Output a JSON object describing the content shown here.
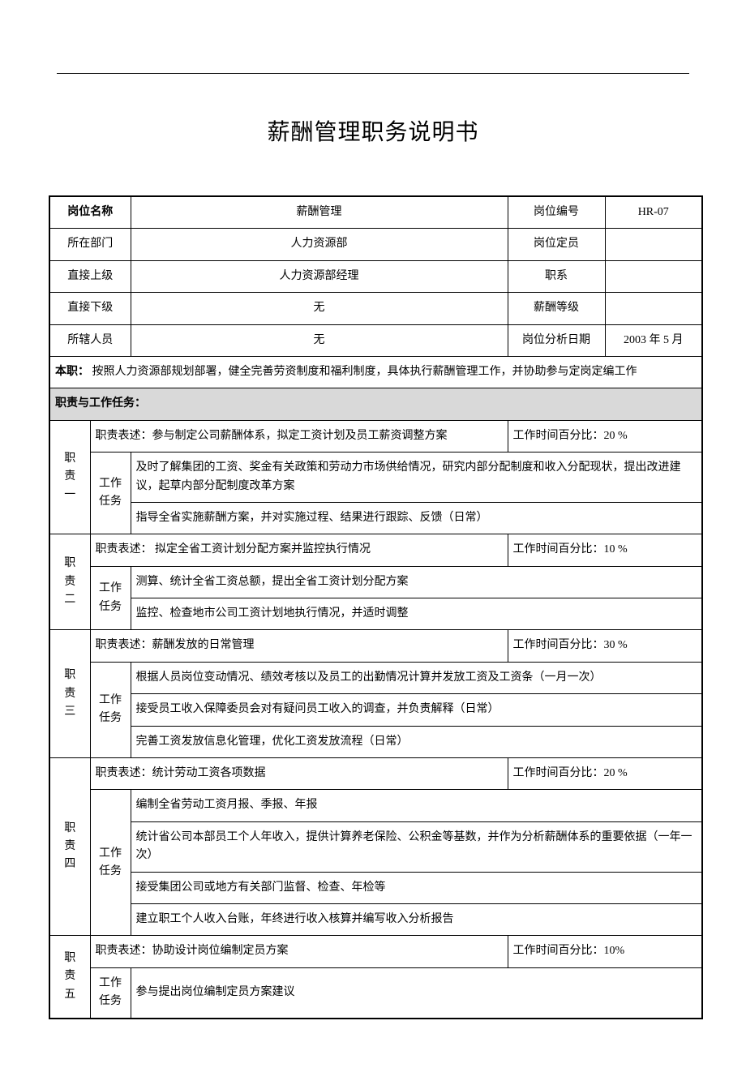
{
  "doc_title": "薪酬管理职务说明书",
  "info_rows": [
    {
      "l1": "岗位名称",
      "l2": "薪酬管理",
      "l3": "岗位编号",
      "l4": "HR-07",
      "bold1": true
    },
    {
      "l1": "所在部门",
      "l2": "人力资源部",
      "l3": "岗位定员",
      "l4": ""
    },
    {
      "l1": "直接上级",
      "l2": "人力资源部经理",
      "l3": "职系",
      "l4": ""
    },
    {
      "l1": "直接下级",
      "l2": "无",
      "l3": "薪酬等级",
      "l4": ""
    },
    {
      "l1": "所辖人员",
      "l2": "无",
      "l3": "岗位分析日期",
      "l4": "2003 年 5 月"
    }
  ],
  "main_duty_label": "本职：",
  "main_duty_text": " 按照人力资源部规划部署，健全完善劳资制度和福利制度，具体执行薪酬管理工作，并协助参与定岗定编工作",
  "section_header": "职责与工作任务：",
  "task_label": "工作任务",
  "desc_prefix": "职责表述：",
  "time_prefix": "工作时间百分比：",
  "duties": [
    {
      "id": "职责一",
      "desc": "参与制定公司薪酬体系，拟定工资计划及员工薪资调整方案",
      "time": "20 %",
      "tasks": [
        "及时了解集团的工资、奖金有关政策和劳动力市场供给情况，研究内部分配制度和收入分配现状，提出改进建议，起草内部分配制度改革方案",
        "指导全省实施薪酬方案，并对实施过程、结果进行跟踪、反馈（日常）"
      ]
    },
    {
      "id": "职责二",
      "desc": " 拟定全省工资计划分配方案并监控执行情况",
      "time": "10 %",
      "tasks": [
        "测算、统计全省工资总额，提出全省工资计划分配方案",
        "监控、检查地市公司工资计划地执行情况，并适时调整"
      ]
    },
    {
      "id": "职责三",
      "desc": "薪酬发放的日常管理",
      "time": "30 %",
      "tasks": [
        "根据人员岗位变动情况、绩效考核以及员工的出勤情况计算并发放工资及工资条（一月一次）",
        "接受员工收入保障委员会对有疑问员工收入的调查，并负责解释（日常）",
        "完善工资发放信息化管理，优化工资发放流程（日常）"
      ]
    },
    {
      "id": "职责四",
      "desc": "统计劳动工资各项数据",
      "time": "20 %",
      "tasks": [
        "编制全省劳动工资月报、季报、年报",
        "统计省公司本部员工个人年收入，提供计算养老保险、公积金等基数，并作为分析薪酬体系的重要依据（一年一次）",
        "接受集团公司或地方有关部门监督、检查、年检等",
        "建立职工个人收入台账，年终进行收入核算并编写收入分析报告"
      ]
    },
    {
      "id": "职责五",
      "desc": "协助设计岗位编制定员方案",
      "time": "10%",
      "tasks": [
        "参与提出岗位编制定员方案建议"
      ]
    }
  ]
}
